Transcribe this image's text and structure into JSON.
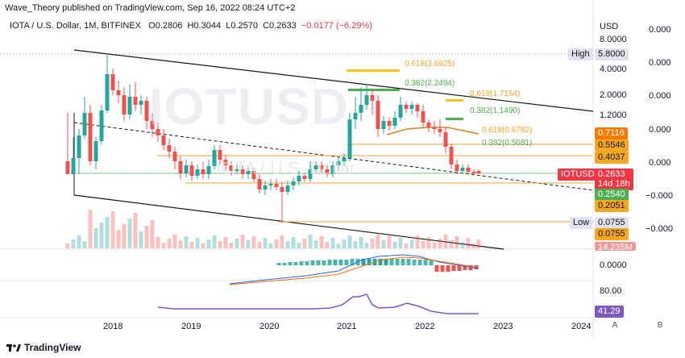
{
  "header": {
    "published": "Wave_Theory published on TradingView.com, Sep 16, 2022 08:24 UTC+2"
  },
  "symbol": {
    "name": "IOTA / U.S. Dollar, 1M, BITFINEX",
    "open": "O0.2806",
    "high": "H0.3044",
    "low": "L0.2570",
    "close": "C0.2633",
    "change": "−0.0177 (−6.29%)"
  },
  "watermark": "IOTUSD",
  "watermark_sub": "IOTA / U.S. Dollar",
  "price_axis": {
    "currency": "USD",
    "ticks": [
      "8.0000",
      "4.0000",
      "2.0000",
      "1.2000"
    ],
    "left_ticks": [
      "0.000",
      "0.000",
      "0.000",
      "0.000",
      "0.000",
      "−0.000",
      "−0.000"
    ],
    "macd_tick": "0.0000",
    "rsi_tick": "80.00"
  },
  "badges": {
    "high_label": "High",
    "high_value": "5.8000",
    "b1": "0.7116",
    "b2": "0.5546",
    "b3": "0.4037",
    "symbol_tag": "IOTUSD",
    "price": "0.2633",
    "countdown": "14d 18h",
    "b4": "0.2540",
    "b5": "0.2051",
    "low_label": "Low",
    "low_value": "0.0755",
    "b6": "0.0755",
    "volume": "14.235M",
    "rsi": "41.29"
  },
  "fib_labels": {
    "f1": "0.618(3.6925)",
    "f2": "0.382(2.2494)",
    "f3": "0.618(1.7154)",
    "f4": "0.382(1.1490)",
    "f5": "0.618(0.6782)",
    "f6": "0.382(0.5081)"
  },
  "time_axis": [
    "2018",
    "2019",
    "2020",
    "2021",
    "2022",
    "2023",
    "2024"
  ],
  "buttons": {
    "a": "A",
    "b": "B"
  },
  "footer": {
    "brand": "TradingView"
  },
  "colors": {
    "up": "#26a69a",
    "down": "#ef5350",
    "fib_orange": "#f5a623",
    "fib_green": "#4caf50",
    "support": "#f0a030",
    "trend": "#131722"
  }
}
